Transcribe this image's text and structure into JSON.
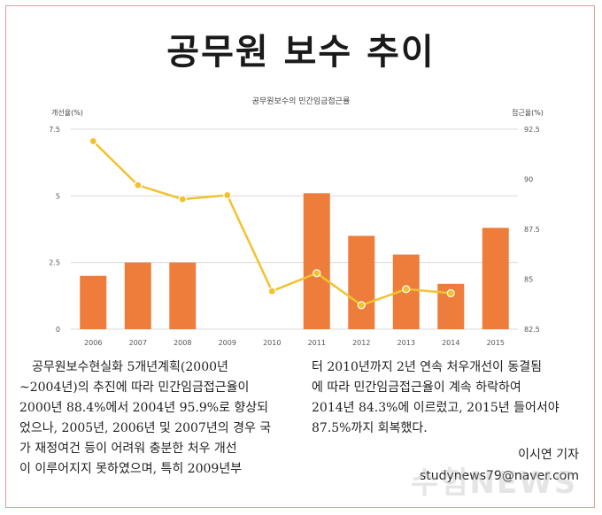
{
  "headline": "공무원 보수 추이",
  "colors": {
    "bar": "#ee7d3b",
    "line": "#f2c22e",
    "grid": "#d9d9d9",
    "frame": "#e0a098"
  },
  "chart_data": {
    "type": "bar",
    "title": "공무원보수의 민간임금접근률",
    "categories": [
      "2006",
      "2007",
      "2008",
      "2009",
      "2010",
      "2011",
      "2012",
      "2013",
      "2014",
      "2015"
    ],
    "y_left": {
      "label": "개선율(%)",
      "ticks": [
        "0",
        "2.5",
        "5",
        "7.5"
      ],
      "lim": [
        0,
        7.5
      ]
    },
    "y_right": {
      "label": "접근율(%)",
      "ticks": [
        "82.5",
        "85",
        "87.5",
        "90",
        "92.5"
      ],
      "lim": [
        82.5,
        92.5
      ]
    },
    "bar_series": {
      "values": [
        2.0,
        2.5,
        2.5,
        null,
        null,
        5.1,
        3.5,
        2.8,
        1.7,
        3.8
      ]
    },
    "line_series": {
      "values": [
        91.9,
        89.7,
        89.0,
        89.2,
        84.4,
        85.3,
        83.7,
        84.5,
        84.3,
        null
      ]
    },
    "grid": true
  },
  "text": {
    "left_lines": [
      "공무원보수현실화 5개년계획(2000년",
      "~2004년)의 추진에 따라 민간임금접근율이",
      "2000년 88.4%에서 2004년  95.9%로 향상되",
      "었으나, 2005년, 2006년 및 2007년의 경우 국",
      "가 재정여건 등이 어려워 충분한 처우 개선",
      "이 이루어지지 못하였으며, 특히 2009년부"
    ],
    "right_lines": [
      "터 2010년까지 2년 연속 처우개선이 동결됨",
      "에 따라 민간임금접근율이 계속 하락하여",
      "2014년  84.3%에 이르렀고, 2015년 들어서야",
      "87.5%까지 회복했다."
    ]
  },
  "byline": {
    "author": "이시연 기자",
    "email": "studynews79@naver.com"
  },
  "watermark": "수험NEWS"
}
